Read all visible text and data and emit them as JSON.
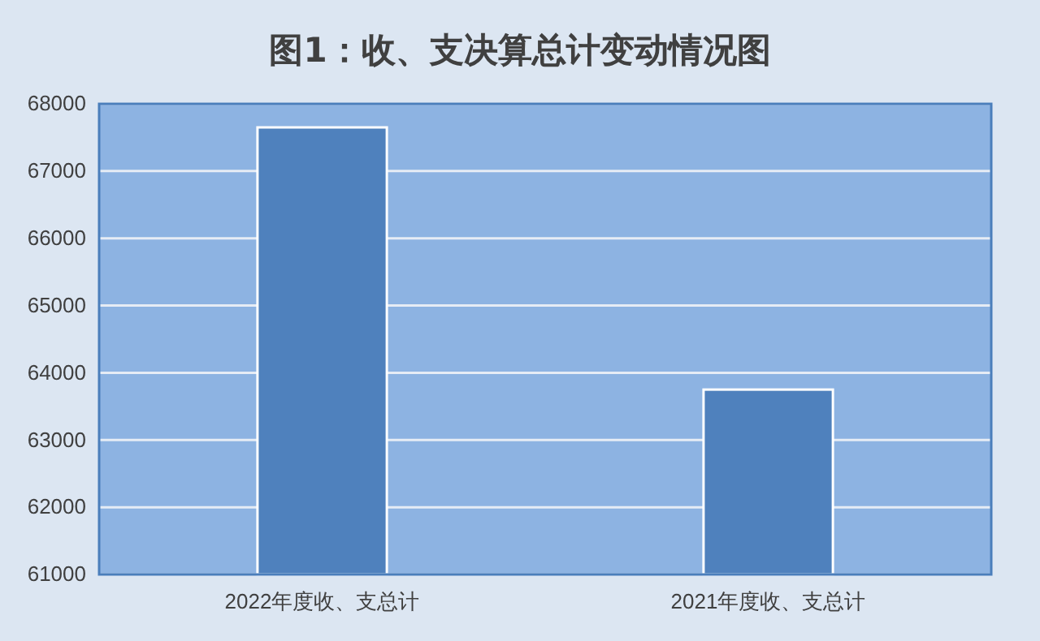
{
  "chart_data": {
    "type": "bar",
    "title": "图1：收、支决算总计变动情况图",
    "categories": [
      "2022年度收、支总计",
      "2021年度收、支总计"
    ],
    "values": [
      67650,
      63750
    ],
    "color": "#4f81bd",
    "ylim": [
      61000,
      68000
    ],
    "yticks": [
      61000,
      62000,
      63000,
      64000,
      65000,
      66000,
      67000,
      68000
    ],
    "grid": "y"
  }
}
